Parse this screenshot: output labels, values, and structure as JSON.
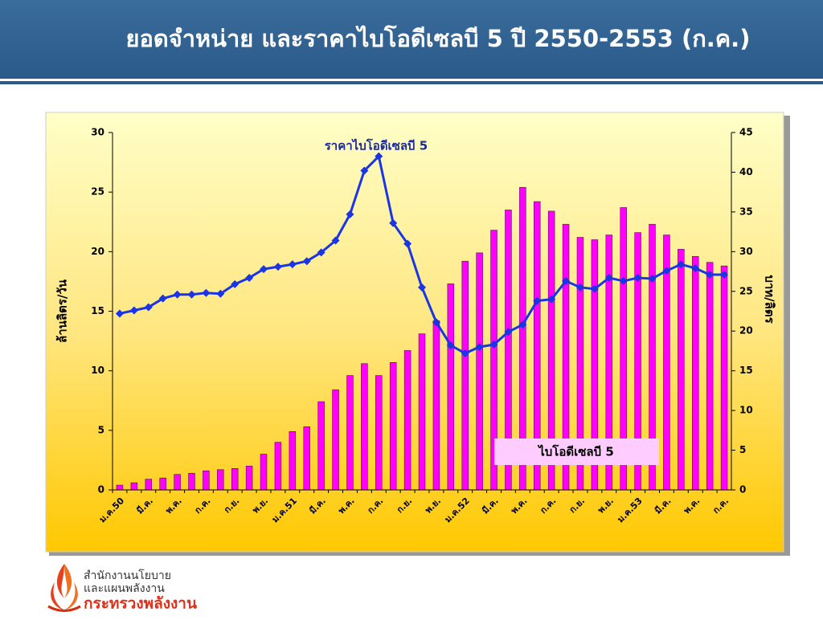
{
  "title": "ยอดจำหน่าย และราคาไบโอดีเซลบี 5 ปี 2550-2553 (ก.ค.)",
  "footer": {
    "org_line1": "สำนักงานนโยบาย",
    "org_line2": "และแผนพลังงาน",
    "ministry": "กระทรวงพลังงาน"
  },
  "chart_data": {
    "type": "bar-line",
    "y_label": "ล้านลิตร/วัน",
    "y2_label": "บาท/ลิตร",
    "categories": [
      "ม.ค.50",
      null,
      "มี.ค.",
      null,
      "พ.ค.",
      null,
      "ก.ค.",
      null,
      "ก.ย.",
      null,
      "พ.ย.",
      null,
      "ม.ค.51",
      null,
      "มี.ค.",
      null,
      "พ.ค.",
      null,
      "ก.ค.",
      null,
      "ก.ย.",
      null,
      "พ.ย.",
      null,
      "ม.ค.52",
      null,
      "มี.ค.",
      null,
      "พ.ค.",
      null,
      "ก.ค.",
      null,
      "ก.ย.",
      null,
      "พ.ย.",
      null,
      "ม.ค.53",
      null,
      "มี.ค.",
      null,
      "พ.ค.",
      null,
      "ก.ค."
    ],
    "series": [
      {
        "name": "ไบโอดีเซลบี 5",
        "type": "bar",
        "color": "#ff00ff",
        "values": [
          0.4,
          0.6,
          0.9,
          1.0,
          1.3,
          1.4,
          1.6,
          1.7,
          1.8,
          2.0,
          3.0,
          4.0,
          4.9,
          5.3,
          7.4,
          8.4,
          9.6,
          10.6,
          9.6,
          10.7,
          11.7,
          13.1,
          14.2,
          17.3,
          19.2,
          19.9,
          21.8,
          23.5,
          25.4,
          24.2,
          23.4,
          22.3,
          21.2,
          21.0,
          21.4,
          23.7,
          21.6,
          22.3,
          21.4,
          20.2,
          19.6,
          19.1,
          18.8
        ]
      },
      {
        "name": "ราคาไบโอดีเซลบี 5",
        "type": "line",
        "axis": "y2",
        "color": "#1a35e6",
        "values": [
          22.2,
          22.6,
          23.0,
          24.1,
          24.6,
          24.6,
          24.8,
          24.7,
          25.9,
          26.7,
          27.8,
          28.1,
          28.4,
          28.8,
          29.9,
          31.4,
          34.7,
          40.2,
          42.0,
          33.6,
          31.0,
          25.5,
          21.1,
          18.2,
          17.2,
          18.0,
          18.3,
          19.9,
          20.8,
          23.8,
          24.0,
          26.3,
          25.5,
          25.3,
          26.7,
          26.3,
          26.7,
          26.6,
          27.6,
          28.4,
          27.9,
          27.1,
          27.1
        ]
      }
    ],
    "ylim": [
      0,
      30
    ],
    "yticks": [
      0,
      5,
      10,
      15,
      20,
      25,
      30
    ],
    "y2lim": [
      0,
      45
    ],
    "y2ticks": [
      0,
      5,
      10,
      15,
      20,
      25,
      30,
      35,
      40,
      45
    ]
  }
}
